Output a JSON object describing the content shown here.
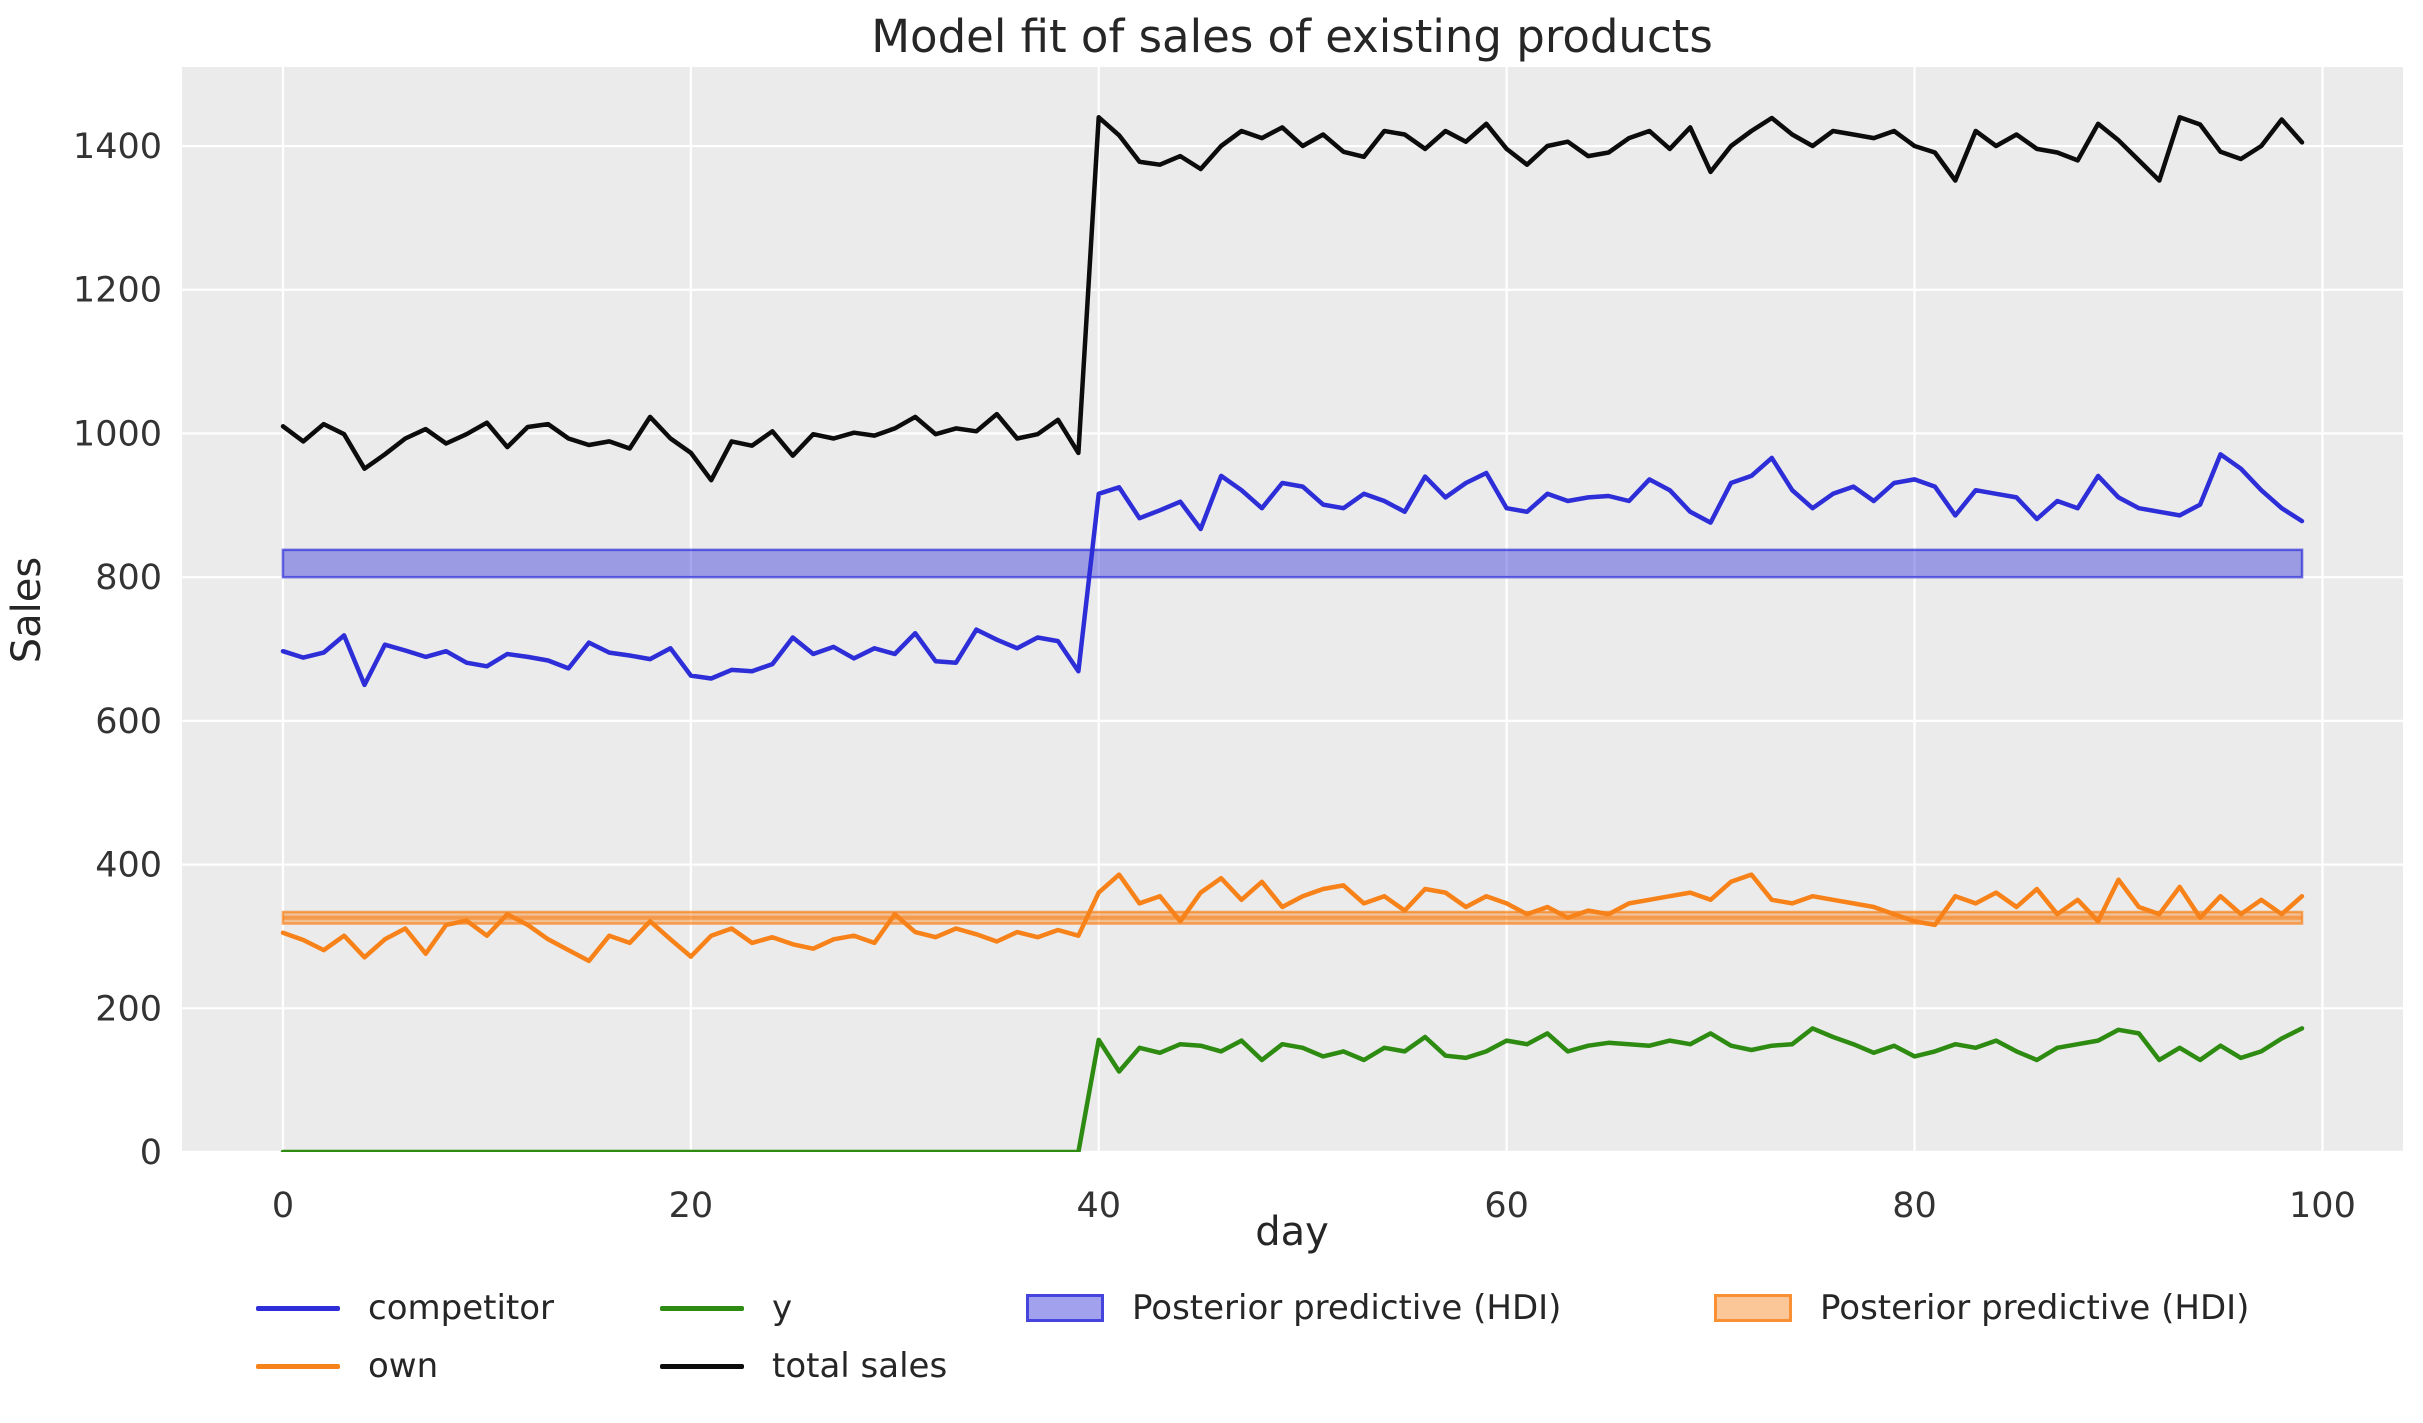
{
  "title": "Model fit of sales of existing products",
  "xlabel": "day",
  "ylabel": "Sales",
  "legend": {
    "items": [
      {
        "label": "competitor",
        "kind": "line",
        "color": "#2e2ed9"
      },
      {
        "label": "own",
        "kind": "line",
        "color": "#f8821a"
      },
      {
        "label": "y",
        "kind": "line",
        "color": "#2e8b12"
      },
      {
        "label": "total sales",
        "kind": "line",
        "color": "#0c0c0c"
      },
      {
        "label": "Posterior predictive (HDI)",
        "kind": "patch",
        "color": "#2e2ed9"
      },
      {
        "label": "Posterior predictive (HDI)",
        "kind": "patch",
        "color": "#f8821a"
      }
    ]
  },
  "chart_data": {
    "type": "line",
    "title": "Model fit of sales of existing products",
    "xlabel": "day",
    "ylabel": "Sales",
    "xlim": [
      -4.95,
      103.95
    ],
    "ylim": [
      0,
      1510
    ],
    "xticks": [
      0,
      20,
      40,
      60,
      80,
      100
    ],
    "yticks": [
      0,
      200,
      400,
      600,
      800,
      1000,
      1200,
      1400
    ],
    "grid": true,
    "grid_color": "#ffffff",
    "background": "#ebebeb",
    "legend_position": "below",
    "x": [
      0,
      1,
      2,
      3,
      4,
      5,
      6,
      7,
      8,
      9,
      10,
      11,
      12,
      13,
      14,
      15,
      16,
      17,
      18,
      19,
      20,
      21,
      22,
      23,
      24,
      25,
      26,
      27,
      28,
      29,
      30,
      31,
      32,
      33,
      34,
      35,
      36,
      37,
      38,
      39,
      40,
      41,
      42,
      43,
      44,
      45,
      46,
      47,
      48,
      49,
      50,
      51,
      52,
      53,
      54,
      55,
      56,
      57,
      58,
      59,
      60,
      61,
      62,
      63,
      64,
      65,
      66,
      67,
      68,
      69,
      70,
      71,
      72,
      73,
      74,
      75,
      76,
      77,
      78,
      79,
      80,
      81,
      82,
      83,
      84,
      85,
      86,
      87,
      88,
      89,
      90,
      91,
      92,
      93,
      94,
      95,
      96,
      97,
      98,
      99
    ],
    "series": [
      {
        "name": "competitor",
        "color": "#2e2ed9",
        "values": [
          697,
          688,
          695,
          719,
          650,
          706,
          698,
          689,
          697,
          681,
          676,
          693,
          689,
          684,
          673,
          709,
          695,
          691,
          686,
          701,
          663,
          659,
          671,
          669,
          679,
          716,
          693,
          703,
          687,
          701,
          693,
          722,
          683,
          681,
          727,
          713,
          701,
          716,
          711,
          669,
          916,
          925,
          882,
          893,
          905,
          867,
          941,
          921,
          896,
          931,
          926,
          901,
          896,
          916,
          906,
          891,
          940,
          911,
          931,
          945,
          896,
          891,
          916,
          906,
          911,
          913,
          906,
          936,
          921,
          891,
          876,
          931,
          941,
          966,
          921,
          896,
          916,
          926,
          906,
          931,
          936,
          926,
          886,
          921,
          916,
          911,
          881,
          906,
          896,
          941,
          911,
          896,
          891,
          886,
          901,
          971,
          951,
          921,
          896,
          878
        ]
      },
      {
        "name": "own",
        "color": "#f8821a",
        "values": [
          305,
          295,
          281,
          301,
          271,
          296,
          311,
          276,
          316,
          322,
          301,
          331,
          316,
          296,
          281,
          266,
          301,
          291,
          321,
          296,
          272,
          301,
          311,
          291,
          299,
          289,
          283,
          296,
          301,
          291,
          331,
          306,
          299,
          311,
          303,
          293,
          306,
          299,
          309,
          301,
          361,
          386,
          346,
          356,
          321,
          361,
          381,
          351,
          376,
          341,
          356,
          366,
          371,
          346,
          356,
          336,
          366,
          361,
          341,
          356,
          346,
          331,
          341,
          326,
          336,
          331,
          346,
          351,
          356,
          361,
          351,
          376,
          386,
          351,
          346,
          356,
          351,
          346,
          341,
          331,
          321,
          316,
          356,
          346,
          361,
          341,
          366,
          331,
          351,
          321,
          379,
          341,
          331,
          369,
          326,
          356,
          331,
          351,
          331,
          356
        ]
      },
      {
        "name": "y",
        "color": "#2e8b12",
        "values": [
          0,
          0,
          0,
          0,
          0,
          0,
          0,
          0,
          0,
          0,
          0,
          0,
          0,
          0,
          0,
          0,
          0,
          0,
          0,
          0,
          0,
          0,
          0,
          0,
          0,
          0,
          0,
          0,
          0,
          0,
          0,
          0,
          0,
          0,
          0,
          0,
          0,
          0,
          0,
          0,
          156,
          112,
          145,
          138,
          150,
          148,
          140,
          155,
          128,
          150,
          145,
          133,
          140,
          128,
          145,
          140,
          160,
          134,
          131,
          140,
          155,
          150,
          165,
          140,
          148,
          152,
          150,
          148,
          155,
          150,
          165,
          148,
          142,
          148,
          150,
          172,
          160,
          150,
          138,
          148,
          133,
          140,
          150,
          145,
          155,
          140,
          128,
          145,
          150,
          155,
          170,
          165,
          128,
          145,
          128,
          148,
          131,
          140,
          158,
          172
        ]
      },
      {
        "name": "total sales",
        "color": "#0c0c0c",
        "values": [
          1010,
          989,
          1013,
          999,
          951,
          971,
          993,
          1006,
          986,
          999,
          1015,
          981,
          1009,
          1013,
          993,
          984,
          989,
          979,
          1023,
          993,
          973,
          935,
          989,
          983,
          1003,
          969,
          999,
          993,
          1001,
          997,
          1007,
          1023,
          999,
          1007,
          1003,
          1027,
          993,
          999,
          1019,
          973,
          1440,
          1415,
          1378,
          1374,
          1386,
          1368,
          1400,
          1421,
          1411,
          1426,
          1400,
          1416,
          1392,
          1385,
          1421,
          1416,
          1396,
          1421,
          1406,
          1431,
          1396,
          1374,
          1400,
          1406,
          1386,
          1391,
          1411,
          1421,
          1396,
          1426,
          1364,
          1400,
          1421,
          1439,
          1416,
          1400,
          1421,
          1416,
          1411,
          1421,
          1400,
          1391,
          1352,
          1421,
          1400,
          1416,
          1396,
          1391,
          1380,
          1431,
          1408,
          1380,
          1352,
          1440,
          1430,
          1392,
          1382,
          1400,
          1437,
          1405
        ]
      }
    ],
    "bands": [
      {
        "name": "Posterior predictive (HDI)",
        "color": "#2e2ed9",
        "lo": 800,
        "hi": 838
      },
      {
        "name": "Posterior predictive (HDI)",
        "color": "#f8821a",
        "lo": 318,
        "hi": 334,
        "mid": 326
      }
    ]
  }
}
